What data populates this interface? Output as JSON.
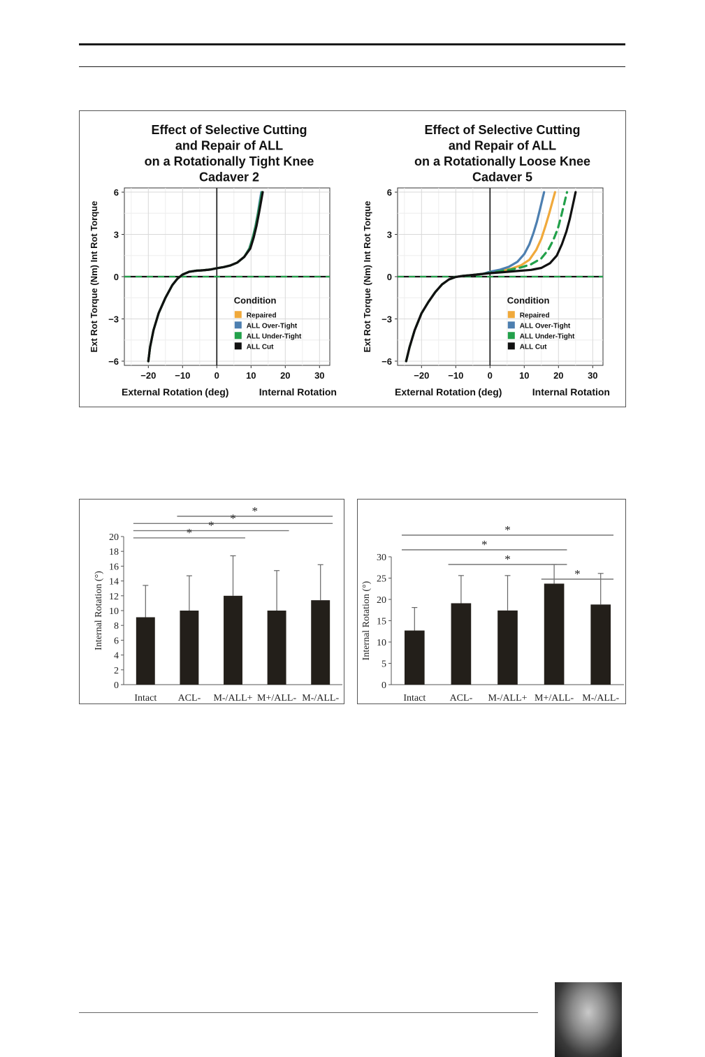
{
  "chart_data": [
    {
      "type": "line",
      "title_lines": [
        "Effect of Selective Cutting",
        "and Repair of ALL",
        "on a Rotationally Tight Knee",
        "Cadaver 2"
      ],
      "xlabel_left": "External Rotation",
      "xlabel_mid": "(deg)",
      "xlabel_right": "Internal Rotation",
      "ylabel": "Ext Rot Torque (Nm) Int Rot Torque",
      "xlim": [
        -27,
        33
      ],
      "ylim": [
        -6.3,
        6.3
      ],
      "xticks": [
        "−20",
        "−10",
        "0",
        "10",
        "20",
        "30"
      ],
      "yticks": [
        "6",
        "3",
        "0",
        "−3",
        "−6"
      ],
      "legend_title": "Condition",
      "series": [
        {
          "name": "Repaired",
          "color": "#f0a93b",
          "dash": false,
          "x": [
            -20,
            -19.5,
            -18.5,
            -17,
            -15,
            -13,
            -11.5,
            -10,
            -8,
            -6,
            -4,
            -2,
            0,
            2,
            4,
            6,
            8,
            9.5,
            10.5,
            11.3,
            12,
            12.6,
            13.1
          ],
          "y": [
            -6,
            -5,
            -3.8,
            -2.6,
            -1.5,
            -0.6,
            -0.15,
            0.15,
            0.35,
            0.42,
            0.45,
            0.5,
            0.6,
            0.68,
            0.8,
            1.0,
            1.4,
            2.0,
            2.8,
            3.6,
            4.5,
            5.3,
            6
          ]
        },
        {
          "name": "ALL Over-Tight",
          "color": "#4d7fb0",
          "dash": false,
          "x": [
            -20,
            -19.5,
            -18.5,
            -17,
            -15,
            -13,
            -11.5,
            -10,
            -8,
            -6,
            -4,
            -2,
            0,
            2,
            4,
            6,
            8,
            9.5,
            10.5,
            11.3,
            12,
            12.5,
            13
          ],
          "y": [
            -6,
            -5,
            -3.8,
            -2.6,
            -1.5,
            -0.6,
            -0.15,
            0.15,
            0.35,
            0.42,
            0.45,
            0.5,
            0.6,
            0.68,
            0.8,
            1.0,
            1.4,
            2.0,
            2.8,
            3.6,
            4.5,
            5.3,
            6
          ]
        },
        {
          "name": "ALL Under-Tight",
          "color": "#22a04a",
          "dash": false,
          "x": [
            -20,
            -19.5,
            -18.5,
            -17,
            -15,
            -13,
            -11.5,
            -10,
            -8,
            -6,
            -4,
            -2,
            0,
            2,
            4,
            6,
            8,
            9.6,
            10.6,
            11.4,
            12.1,
            12.7,
            13.2
          ],
          "y": [
            -6,
            -5,
            -3.8,
            -2.6,
            -1.5,
            -0.6,
            -0.15,
            0.15,
            0.35,
            0.42,
            0.45,
            0.5,
            0.6,
            0.68,
            0.8,
            1.0,
            1.4,
            2.0,
            2.8,
            3.6,
            4.5,
            5.3,
            6
          ]
        },
        {
          "name": "ALL Cut",
          "color": "#111111",
          "dash": false,
          "x": [
            -20,
            -19.5,
            -18.5,
            -17,
            -15,
            -13,
            -11.5,
            -10,
            -8,
            -6,
            -4,
            -2,
            0,
            2,
            4,
            6,
            8,
            9.8,
            10.8,
            11.6,
            12.3,
            12.9,
            13.4
          ],
          "y": [
            -6,
            -5,
            -3.8,
            -2.6,
            -1.5,
            -0.6,
            -0.15,
            0.15,
            0.35,
            0.42,
            0.45,
            0.5,
            0.6,
            0.68,
            0.8,
            1.0,
            1.4,
            2.0,
            2.8,
            3.6,
            4.5,
            5.3,
            6
          ]
        }
      ],
      "zero_line_color": "#22a04a"
    },
    {
      "type": "line",
      "title_lines": [
        "Effect of Selective Cutting",
        "and Repair of ALL",
        "on a Rotationally Loose Knee",
        "Cadaver 5"
      ],
      "xlabel_left": "External Rotation",
      "xlabel_mid": "(deg)",
      "xlabel_right": "Internal Rotation",
      "ylabel": "Ext Rot Torque (Nm) Int Rot Torque",
      "xlim": [
        -27,
        33
      ],
      "ylim": [
        -6.3,
        6.3
      ],
      "xticks": [
        "−20",
        "−10",
        "0",
        "10",
        "20",
        "30"
      ],
      "yticks": [
        "6",
        "3",
        "0",
        "−3",
        "−6"
      ],
      "legend_title": "Condition",
      "series": [
        {
          "name": "Repaired",
          "color": "#f0a93b",
          "dash": false,
          "x": [
            -24.5,
            -23.5,
            -22,
            -20,
            -18,
            -16,
            -14,
            -12,
            -10,
            -8,
            -5,
            -2,
            0,
            3,
            6,
            9,
            11.5,
            13.5,
            15,
            16.2,
            17.3,
            18.2,
            19
          ],
          "y": [
            -6,
            -5,
            -3.8,
            -2.6,
            -1.8,
            -1.1,
            -0.55,
            -0.2,
            -0.02,
            0.05,
            0.12,
            0.2,
            0.3,
            0.42,
            0.55,
            0.8,
            1.2,
            1.9,
            2.7,
            3.6,
            4.5,
            5.3,
            6
          ]
        },
        {
          "name": "ALL Over-Tight",
          "color": "#4d7fb0",
          "dash": false,
          "x": [
            -24.5,
            -23.5,
            -22,
            -20,
            -18,
            -16,
            -14,
            -12,
            -10,
            -8,
            -5,
            -2,
            0,
            3,
            5.5,
            8,
            10,
            11.5,
            12.7,
            13.7,
            14.5,
            15.2,
            15.8
          ],
          "y": [
            -6,
            -5,
            -3.8,
            -2.6,
            -1.8,
            -1.1,
            -0.55,
            -0.2,
            -0.02,
            0.05,
            0.12,
            0.2,
            0.35,
            0.5,
            0.7,
            1.05,
            1.6,
            2.3,
            3.1,
            3.9,
            4.7,
            5.4,
            6
          ]
        },
        {
          "name": "ALL Under-Tight",
          "color": "#22a04a",
          "dash": true,
          "x": [
            -24.5,
            -23.5,
            -22,
            -20,
            -18,
            -16,
            -14,
            -12,
            -10,
            -8,
            -5,
            -2,
            0,
            3,
            6,
            9,
            12,
            15,
            17,
            18.5,
            19.8,
            20.8,
            21.7,
            22.5
          ],
          "y": [
            -6,
            -5,
            -3.8,
            -2.6,
            -1.8,
            -1.1,
            -0.55,
            -0.2,
            -0.02,
            0.05,
            0.12,
            0.2,
            0.28,
            0.38,
            0.5,
            0.65,
            0.88,
            1.3,
            1.9,
            2.6,
            3.4,
            4.3,
            5.2,
            6
          ]
        },
        {
          "name": "ALL Cut",
          "color": "#111111",
          "dash": false,
          "x": [
            -24.5,
            -23.5,
            -22,
            -20,
            -18,
            -16,
            -14,
            -12,
            -10,
            -8,
            -5,
            -2,
            0,
            4,
            8,
            12,
            15,
            17.5,
            19.5,
            21,
            22.3,
            23.3,
            24.2,
            25
          ],
          "y": [
            -6,
            -5,
            -3.8,
            -2.6,
            -1.8,
            -1.1,
            -0.55,
            -0.2,
            -0.02,
            0.05,
            0.12,
            0.2,
            0.25,
            0.32,
            0.4,
            0.48,
            0.62,
            0.95,
            1.5,
            2.3,
            3.2,
            4.1,
            5.1,
            6
          ]
        }
      ],
      "zero_line_color": "#22a04a"
    },
    {
      "type": "bar",
      "ylabel": "Internal Rotation (°)",
      "categories": [
        "Intact",
        "ACL-",
        "M-/ALL+",
        "M+/ALL-",
        "M-/ALL-"
      ],
      "values": [
        9.1,
        10,
        12,
        10,
        11.4
      ],
      "errors": [
        4.3,
        4.7,
        5.4,
        5.4,
        4.8
      ],
      "ylim": [
        0,
        20
      ],
      "yticks": [
        "0",
        "2",
        "4",
        "6",
        "8",
        "10",
        "12",
        "14",
        "16",
        "18",
        "20"
      ],
      "significance": [
        {
          "from": 1,
          "to": 4,
          "label": "*"
        },
        {
          "from": 0,
          "to": 4,
          "label": "*"
        },
        {
          "from": 0,
          "to": 3,
          "label": "*"
        },
        {
          "from": 0,
          "to": 2,
          "label": "*"
        }
      ]
    },
    {
      "type": "bar",
      "ylabel": "Internal Rotation (°)",
      "categories": [
        "Intact",
        "ACL-",
        "M-/ALL+",
        "M+/ALL-",
        "M-/ALL-"
      ],
      "values": [
        12.7,
        19.1,
        17.4,
        23.7,
        18.8
      ],
      "errors": [
        5.4,
        6.5,
        8.2,
        4.5,
        7.3
      ],
      "ylim": [
        0,
        30
      ],
      "yticks": [
        "0",
        "5",
        "10",
        "15",
        "20",
        "25",
        "30"
      ],
      "significance": [
        {
          "from": 0,
          "to": 4,
          "label": "*"
        },
        {
          "from": 0,
          "to": 3,
          "label": "*"
        },
        {
          "from": 1,
          "to": 3,
          "label": "*"
        },
        {
          "from": 3,
          "to": 4,
          "label": "*"
        }
      ]
    }
  ]
}
